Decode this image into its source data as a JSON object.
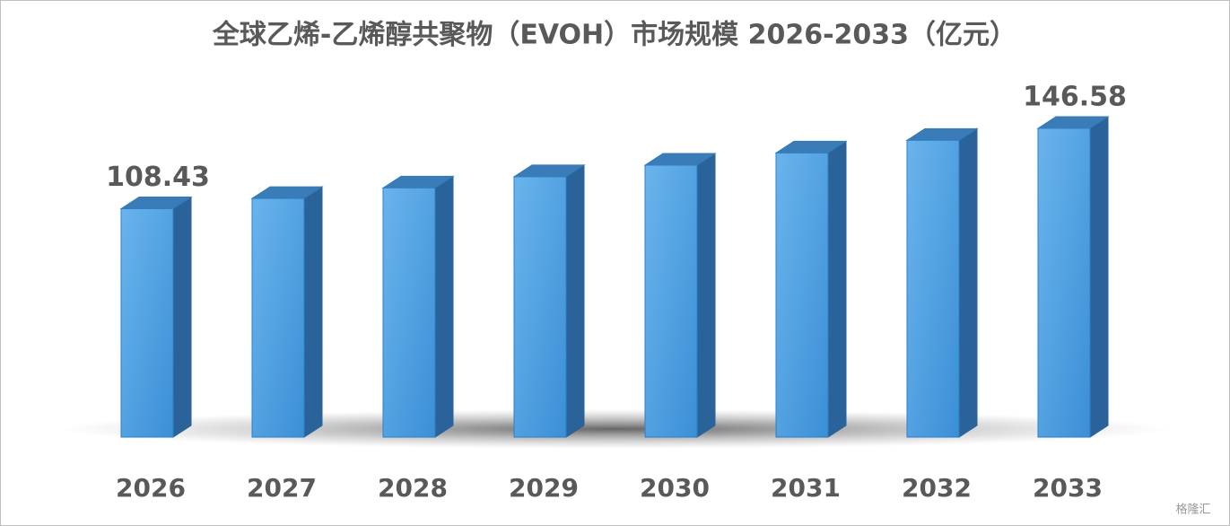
{
  "chart_data": {
    "type": "bar3d",
    "title": "全球乙烯-乙烯醇共聚物（EVOH）市场规模 2026-2033（亿元）",
    "categories": [
      "2026",
      "2027",
      "2028",
      "2029",
      "2030",
      "2031",
      "2032",
      "2033"
    ],
    "values": [
      108.43,
      113.3,
      118.3,
      123.6,
      129.1,
      134.9,
      140.9,
      146.58
    ],
    "value_labels": [
      "108.43",
      null,
      null,
      null,
      null,
      null,
      null,
      "146.58"
    ],
    "color": "#4a9ee0"
  },
  "watermark": "格隆汇"
}
